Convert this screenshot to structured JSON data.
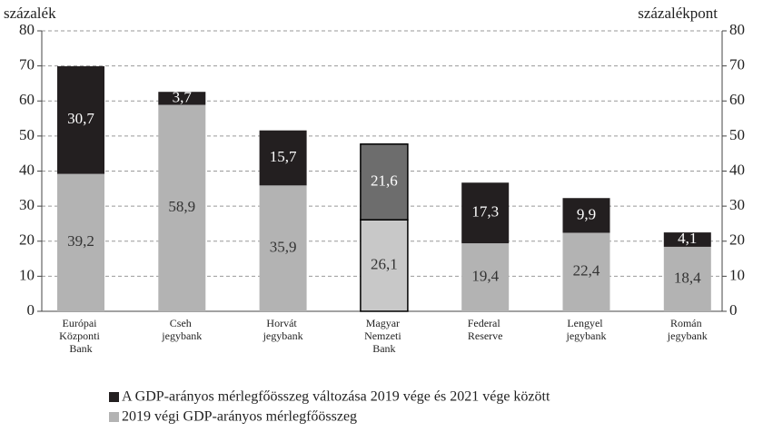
{
  "chart_data": {
    "type": "bar",
    "stacked": true,
    "ylabel": "százalék",
    "y2label": "százalékpont",
    "categories": [
      "Európai Központi Bank",
      "Cseh jegybank",
      "Horvát jegybank",
      "Magyar Nemzeti Bank",
      "Federal Reserve",
      "Lengyel jegybank",
      "Román jegybank"
    ],
    "series": [
      {
        "name": "2019 végi GDP-arányos mérlegfőösszeg",
        "color": "#b3b3b3",
        "colors": [
          "#b3b3b3",
          "#b3b3b3",
          "#b3b3b3",
          "#c8c8c8",
          "#b3b3b3",
          "#b3b3b3",
          "#b3b3b3"
        ],
        "label_color": "#333333",
        "values": [
          39.2,
          58.9,
          35.9,
          26.1,
          19.4,
          22.4,
          18.4
        ],
        "value_labels": [
          "39,2",
          "58,9",
          "35,9",
          "26,1",
          "19,4",
          "22,4",
          "18,4"
        ]
      },
      {
        "name": "A GDP-arányos mérlegfőösszeg változása 2019 vége és 2021 vége között",
        "color": "#231f20",
        "colors": [
          "#231f20",
          "#231f20",
          "#231f20",
          "#6d6d6d",
          "#231f20",
          "#231f20",
          "#231f20"
        ],
        "label_color": "#ffffff",
        "values": [
          30.7,
          3.7,
          15.7,
          21.6,
          17.3,
          9.9,
          4.1
        ],
        "value_labels": [
          "30,7",
          "3,7",
          "15,7",
          "21,6",
          "17,3",
          "9,9",
          "4,1"
        ]
      }
    ],
    "ylim": [
      0,
      80
    ],
    "yticks": [
      0,
      10,
      20,
      30,
      40,
      50,
      60,
      70,
      80
    ],
    "y2lim": [
      0,
      80
    ],
    "y2ticks": [
      0,
      10,
      20,
      30,
      40,
      50,
      60,
      70,
      80
    ],
    "grid": true,
    "legend": "bottom"
  }
}
